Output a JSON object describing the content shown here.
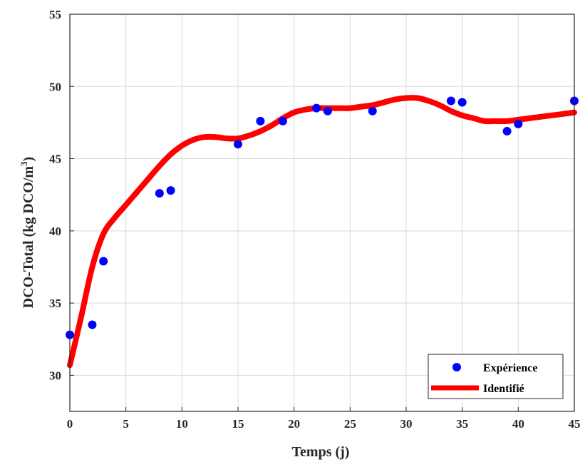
{
  "chart_data": {
    "type": "scatter+line",
    "xlabel": "Temps (j)",
    "ylabel": {
      "main": "DCO-Total (kg DCO/m",
      "superscript": "3",
      "close": ")"
    },
    "xlim": [
      0,
      45
    ],
    "ylim": [
      27.5,
      55
    ],
    "xticks": [
      0,
      5,
      10,
      15,
      20,
      25,
      30,
      35,
      40,
      45
    ],
    "yticks": [
      30,
      35,
      40,
      45,
      50,
      55
    ],
    "grid": true,
    "legend_position": "bottom-right",
    "series": [
      {
        "name": "Expérience",
        "kind": "scatter",
        "color": "#0000ff",
        "x": [
          0,
          2,
          3,
          8,
          9,
          15,
          17,
          19,
          22,
          23,
          27,
          34,
          35,
          39,
          40,
          45
        ],
        "y": [
          32.8,
          33.5,
          37.9,
          42.6,
          42.8,
          46.0,
          47.6,
          47.6,
          48.5,
          48.3,
          48.3,
          49.0,
          48.9,
          46.9,
          47.4,
          49.0
        ]
      },
      {
        "name": "Identifié",
        "kind": "line",
        "color": "#ff0000",
        "x": [
          0,
          1,
          2,
          3,
          4,
          5,
          6,
          7,
          8,
          9,
          10,
          11,
          12,
          13,
          14,
          15,
          16,
          17,
          18,
          19,
          20,
          21,
          22,
          23,
          24,
          25,
          26,
          27,
          28,
          29,
          30,
          31,
          32,
          33,
          34,
          35,
          36,
          37,
          38,
          39,
          40,
          41,
          42,
          43,
          44,
          45
        ],
        "y": [
          30.7,
          34.0,
          37.5,
          39.8,
          40.9,
          41.8,
          42.7,
          43.6,
          44.5,
          45.3,
          45.9,
          46.3,
          46.5,
          46.5,
          46.4,
          46.4,
          46.6,
          46.9,
          47.3,
          47.8,
          48.2,
          48.4,
          48.5,
          48.5,
          48.5,
          48.5,
          48.6,
          48.7,
          48.9,
          49.1,
          49.2,
          49.2,
          49.0,
          48.7,
          48.3,
          48.0,
          47.8,
          47.6,
          47.6,
          47.6,
          47.7,
          47.8,
          47.9,
          48.0,
          48.1,
          48.2
        ]
      }
    ]
  }
}
